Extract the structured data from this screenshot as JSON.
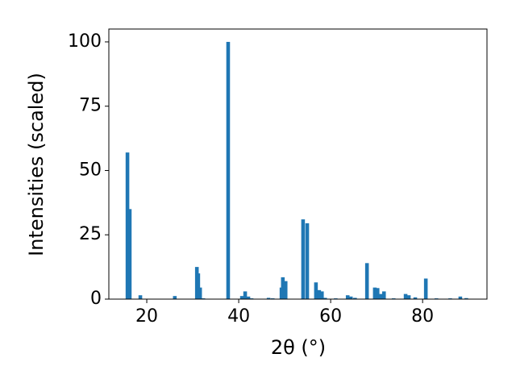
{
  "chart_data": {
    "type": "bar",
    "xlabel": "2θ (°)",
    "ylabel": "Intensities (scaled)",
    "x": [
      15.8,
      16.3,
      18.6,
      26.1,
      30.9,
      31.2,
      31.6,
      32.3,
      37.7,
      40.7,
      41.4,
      42.1,
      42.8,
      46.5,
      47.4,
      49.3,
      49.6,
      50.2,
      54.0,
      54.9,
      56.8,
      57.5,
      58.1,
      58.8,
      61.1,
      63.7,
      64.4,
      65.3,
      67.9,
      69.6,
      70.2,
      70.9,
      71.6,
      73.7,
      76.3,
      77.0,
      78.4,
      80.7,
      83.0,
      86.0,
      88.2,
      89.5
    ],
    "values": [
      57,
      35,
      1.5,
      1.2,
      12.5,
      10,
      4.5,
      0.3,
      100,
      1.2,
      3,
      1,
      0.3,
      0.5,
      0.3,
      4.5,
      8.5,
      7,
      31,
      29.5,
      6.5,
      3.5,
      3,
      0.5,
      0.3,
      1.5,
      1,
      0.5,
      14,
      4.5,
      4.3,
      2,
      3,
      0.3,
      2,
      1.5,
      0.7,
      8,
      0.3,
      0.3,
      1,
      0.4
    ],
    "color": "#1f77b4",
    "xlim": [
      11.75,
      94
    ],
    "xticks": [
      20,
      40,
      60,
      80
    ],
    "ylim": [
      0,
      105
    ],
    "yticks": [
      0,
      25,
      50,
      75,
      100
    ],
    "grid": false
  }
}
